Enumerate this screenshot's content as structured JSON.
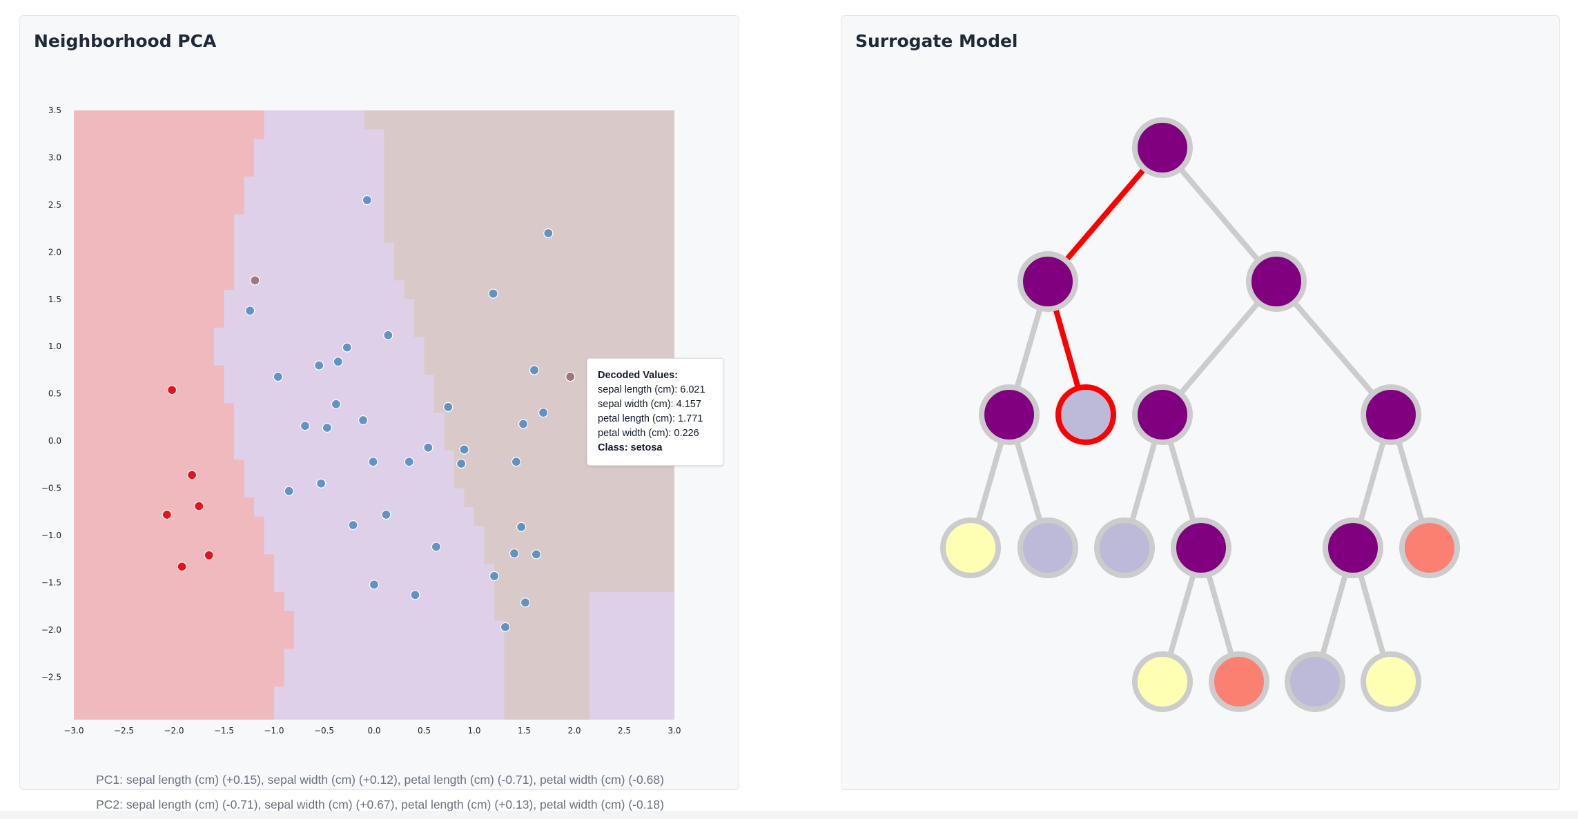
{
  "pca_panel": {
    "title": "Neighborhood PCA",
    "pc1_caption": "PC1: sepal length (cm) (+0.15), sepal width (cm) (+0.12), petal length (cm) (-0.71), petal width (cm) (-0.68)",
    "pc2_caption": "PC2: sepal length (cm) (-0.71), sepal width (cm) (+0.67), petal length (cm) (+0.13), petal width (cm) (-0.18)",
    "tooltip": {
      "heading": "Decoded Values:",
      "lines": [
        "sepal length (cm): 6.021",
        "sepal width (cm): 4.157",
        "petal length (cm): 1.771",
        "petal width (cm): 0.226"
      ],
      "class_label": "Class: setosa"
    }
  },
  "tree_panel": {
    "title": "Surrogate Model"
  },
  "colors": {
    "region_setosa": "#efb9bd",
    "region_versicolor": "#ddd0e8",
    "region_virginica": "#d9cac9",
    "point_red": "#e8121e",
    "point_blue": "#3a7fb8",
    "node_purple": "#800080",
    "node_lavender": "#bdb9d9",
    "node_yellow": "#ffffb3",
    "node_salmon": "#fb8072",
    "edge_gray": "#cccccc",
    "path_red": "#ff0000"
  },
  "chart_data": {
    "type": "scatter",
    "title": "Neighborhood PCA",
    "xlim": [
      -3.0,
      3.0
    ],
    "ylim": [
      -2.95,
      3.5
    ],
    "x_ticks": [
      "-3.0",
      "-2.5",
      "-2.0",
      "-1.5",
      "-1.0",
      "-0.5",
      "0.0",
      "0.5",
      "1.0",
      "1.5",
      "2.0",
      "2.5",
      "3.0"
    ],
    "y_ticks": [
      "3.5",
      "3.0",
      "2.5",
      "2.0",
      "1.5",
      "1.0",
      "0.5",
      "0.0",
      "−0.5",
      "−1.0",
      "−1.5",
      "−2.0",
      "−2.5"
    ],
    "regions": {
      "setosa_max_x_by_y": [
        [
          3.5,
          -1.1
        ],
        [
          3.3,
          -1.1
        ],
        [
          3.2,
          -1.2
        ],
        [
          3.0,
          -1.2
        ],
        [
          2.8,
          -1.3
        ],
        [
          2.6,
          -1.3
        ],
        [
          2.4,
          -1.4
        ],
        [
          2.2,
          -1.4
        ],
        [
          2.0,
          -1.4
        ],
        [
          1.8,
          -1.4
        ],
        [
          1.6,
          -1.5
        ],
        [
          1.4,
          -1.5
        ],
        [
          1.2,
          -1.6
        ],
        [
          1.0,
          -1.6
        ],
        [
          0.8,
          -1.5
        ],
        [
          0.6,
          -1.5
        ],
        [
          0.4,
          -1.4
        ],
        [
          0.2,
          -1.4
        ],
        [
          0.0,
          -1.4
        ],
        [
          -0.2,
          -1.3
        ],
        [
          -0.4,
          -1.3
        ],
        [
          -0.6,
          -1.2
        ],
        [
          -0.8,
          -1.1
        ],
        [
          -1.0,
          -1.1
        ],
        [
          -1.2,
          -1.0
        ],
        [
          -1.4,
          -1.0
        ],
        [
          -1.6,
          -0.9
        ],
        [
          -1.8,
          -0.8
        ],
        [
          -2.0,
          -0.8
        ],
        [
          -2.2,
          -0.9
        ],
        [
          -2.4,
          -0.9
        ],
        [
          -2.6,
          -1.0
        ],
        [
          -2.8,
          -1.0
        ],
        [
          -2.95,
          -1.0
        ]
      ],
      "virginica_min_x_by_y": [
        [
          3.5,
          -0.1
        ],
        [
          3.3,
          0.1
        ],
        [
          3.1,
          0.1
        ],
        [
          2.9,
          0.1
        ],
        [
          2.7,
          0.1
        ],
        [
          2.5,
          0.1
        ],
        [
          2.3,
          0.1
        ],
        [
          2.1,
          0.2
        ],
        [
          1.9,
          0.2
        ],
        [
          1.7,
          0.3
        ],
        [
          1.5,
          0.4
        ],
        [
          1.3,
          0.4
        ],
        [
          1.1,
          0.5
        ],
        [
          0.9,
          0.5
        ],
        [
          0.7,
          0.6
        ],
        [
          0.5,
          0.6
        ],
        [
          0.3,
          0.7
        ],
        [
          0.1,
          0.7
        ],
        [
          -0.1,
          0.8
        ],
        [
          -0.3,
          0.8
        ],
        [
          -0.5,
          0.9
        ],
        [
          -0.7,
          1.0
        ],
        [
          -0.9,
          1.1
        ],
        [
          -1.1,
          1.1
        ],
        [
          -1.3,
          1.2
        ],
        [
          -1.5,
          1.2
        ],
        [
          -1.7,
          1.2
        ],
        [
          -1.9,
          1.3
        ],
        [
          -2.1,
          1.3
        ],
        [
          -2.3,
          1.3
        ],
        [
          -2.5,
          1.3
        ],
        [
          -2.7,
          1.3
        ],
        [
          -2.95,
          1.3
        ]
      ],
      "versicolor_bottom_right": [
        [
          2.15,
          -1.6
        ],
        [
          3.0,
          -1.6
        ],
        [
          3.0,
          -2.95
        ],
        [
          2.15,
          -2.95
        ]
      ]
    },
    "series": [
      {
        "class": "setosa",
        "points": [
          [
            -2.02,
            0.54
          ],
          [
            -1.82,
            -0.36
          ],
          [
            -1.75,
            -0.69
          ],
          [
            -2.07,
            -0.78
          ],
          [
            -1.65,
            -1.21
          ],
          [
            -1.92,
            -1.33
          ]
        ]
      },
      {
        "class": "other",
        "points": [
          [
            -0.07,
            2.55
          ],
          [
            1.74,
            2.2
          ],
          [
            1.19,
            1.56
          ],
          [
            -1.24,
            1.38
          ],
          [
            0.14,
            1.12
          ],
          [
            -0.27,
            0.99
          ],
          [
            -0.36,
            0.84
          ],
          [
            -0.55,
            0.8
          ],
          [
            -0.96,
            0.68
          ],
          [
            1.6,
            0.75
          ],
          [
            -0.38,
            0.39
          ],
          [
            0.74,
            0.36
          ],
          [
            -0.11,
            0.22
          ],
          [
            1.69,
            0.3
          ],
          [
            -0.69,
            0.16
          ],
          [
            -0.47,
            0.14
          ],
          [
            1.49,
            0.18
          ],
          [
            0.54,
            -0.07
          ],
          [
            0.9,
            -0.09
          ],
          [
            -0.01,
            -0.22
          ],
          [
            0.35,
            -0.22
          ],
          [
            0.87,
            -0.24
          ],
          [
            1.42,
            -0.22
          ],
          [
            -0.53,
            -0.45
          ],
          [
            -0.85,
            -0.53
          ],
          [
            0.12,
            -0.78
          ],
          [
            -0.21,
            -0.89
          ],
          [
            1.47,
            -0.91
          ],
          [
            0.62,
            -1.12
          ],
          [
            1.4,
            -1.19
          ],
          [
            1.62,
            -1.2
          ],
          [
            1.2,
            -1.43
          ],
          [
            0.0,
            -1.52
          ],
          [
            0.41,
            -1.63
          ],
          [
            1.51,
            -1.71
          ],
          [
            1.31,
            -1.97
          ]
        ]
      },
      {
        "class": "virginica",
        "points": [
          [
            -1.19,
            1.7
          ],
          [
            1.96,
            0.68
          ]
        ]
      }
    ]
  }
}
